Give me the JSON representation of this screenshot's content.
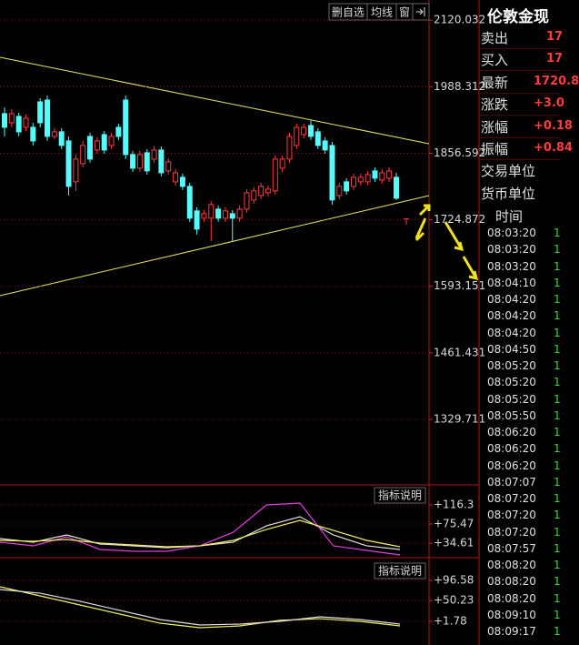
{
  "chart_data": [
    {
      "type": "candlestick",
      "ylim": [
        1200,
        2151
      ],
      "yticks": [
        2120.032,
        1988.312,
        1856.592,
        1724.872,
        1593.151,
        1461.431,
        1329.711
      ],
      "grid": true,
      "up_color": "#ff3c3c",
      "down_color": "#54fcfc",
      "open": [
        1935,
        1917,
        1929.6,
        1908,
        1908,
        1958.4,
        1962,
        1890,
        1899,
        1881,
        1800,
        1836,
        1890,
        1863,
        1893.6,
        1872,
        1908,
        1962,
        1854,
        1827,
        1857.6,
        1845,
        1863,
        1821.6,
        1800,
        1809,
        1791,
        1742.4,
        1728,
        1728,
        1746,
        1728,
        1737,
        1728,
        1746,
        1764,
        1773,
        1778.4,
        1782,
        1827,
        1845,
        1872,
        1893.6,
        1911.6,
        1899,
        1881,
        1872,
        1773,
        1800,
        1791,
        1800,
        1800,
        1821.6,
        1803.6,
        1807.2,
        1809
      ],
      "high": [
        1947.6,
        1944,
        1936.8,
        1933.2,
        1917,
        1965.6,
        1971,
        1906.2,
        1906.2,
        1890,
        1854,
        1881,
        1897.2,
        1888.2,
        1900.8,
        1897.2,
        1915.2,
        1971,
        1861.2,
        1861.2,
        1864.8,
        1870.2,
        1870.2,
        1846.8,
        1825.2,
        1816.2,
        1798.2,
        1749.6,
        1744.2,
        1762.2,
        1753.2,
        1749.6,
        1744.2,
        1753.2,
        1785.6,
        1789.2,
        1798.2,
        1792.8,
        1852.2,
        1852.2,
        1897.2,
        1915.2,
        1915.2,
        1921.4,
        1906.2,
        1888.2,
        1879.2,
        1798.2,
        1807.2,
        1816.2,
        1816.2,
        1821.6,
        1828.8,
        1825.2,
        1828.8,
        1818
      ],
      "low": [
        1890,
        1908,
        1890,
        1900.8,
        1872,
        1908,
        1881,
        1884.6,
        1864.8,
        1773,
        1782,
        1828.8,
        1837.8,
        1855.8,
        1855.8,
        1864.8,
        1882.8,
        1845,
        1819.8,
        1819.8,
        1814.4,
        1837.8,
        1810.8,
        1814.4,
        1792.8,
        1783.8,
        1720.8,
        1695.6,
        1720.8,
        1683,
        1720.8,
        1720.8,
        1683,
        1720.8,
        1738.8,
        1756.8,
        1765.8,
        1771.2,
        1774.8,
        1819.8,
        1837.8,
        1864.8,
        1886.4,
        1882.8,
        1864.8,
        1855.8,
        1755,
        1765.8,
        1774.8,
        1783.8,
        1792.8,
        1792.8,
        1800,
        1796.4,
        1800,
        1764
      ],
      "close": [
        1908,
        1935,
        1899,
        1926,
        1881,
        1917,
        1890,
        1899,
        1872,
        1791,
        1845,
        1872,
        1845,
        1881,
        1863,
        1890,
        1890,
        1854,
        1827,
        1854,
        1821.6,
        1863,
        1818,
        1839.6,
        1818,
        1791,
        1728,
        1706.4,
        1737,
        1755,
        1728,
        1742.4,
        1728,
        1746,
        1778.4,
        1782,
        1791,
        1785.6,
        1845,
        1845,
        1890,
        1908,
        1908,
        1890,
        1872,
        1863,
        1764,
        1791,
        1782,
        1809,
        1809,
        1814.4,
        1807.2,
        1818,
        1821.6,
        1767.6
      ]
    },
    {
      "type": "line",
      "ylim": [
        5.4,
        155.2
      ],
      "yticks": [
        {
          "value": 116.3,
          "label": "+116.3"
        },
        {
          "value": 75.47,
          "label": "+75.47"
        },
        {
          "value": 34.61,
          "label": "+34.61"
        }
      ],
      "series": [
        {
          "color": "#e0e0e0",
          "values": [
            44.3,
            36.6,
            52.1,
            32.7,
            28.8,
            24.9,
            28.8,
            36.6,
            71.6,
            91.0,
            52.1,
            28.8,
            21.0
          ]
        },
        {
          "color": "#e040e0",
          "values": [
            36.6,
            28.8,
            48.2,
            21.0,
            17.1,
            17.1,
            28.8,
            57.9,
            116.3,
            120.2,
            28.8,
            19.0,
            9.3
          ]
        },
        {
          "color": "#f0f060",
          "values": [
            40.4,
            38.5,
            42.4,
            34.6,
            30.7,
            26.8,
            28.8,
            40.4,
            63.8,
            83.2,
            61.9,
            40.4,
            26.8
          ]
        }
      ]
    },
    {
      "type": "line",
      "ylim": [
        -53.0,
        145.0
      ],
      "yticks": [
        {
          "value": 96.58,
          "label": "+96.58"
        },
        {
          "value": 50.23,
          "label": "+50.23"
        },
        {
          "value": 1.78,
          "label": "+1.78"
        }
      ],
      "series": [
        {
          "color": "#f0f060",
          "values": [
            81.8,
            60.7,
            39.7,
            18.6,
            -2.5,
            -13.0,
            -8.8,
            4.2,
            8.0,
            1.7,
            -8.8
          ]
        },
        {
          "color": "#e0e0e0",
          "values": [
            75.5,
            66.9,
            48.2,
            27.1,
            6.0,
            -6.6,
            -4.5,
            1.7,
            12.3,
            6.0,
            -4.5
          ]
        }
      ]
    }
  ],
  "toolbar": [
    "删自选",
    "均线",
    "窗"
  ],
  "indicator_buttons": [
    "指标说明",
    "指标说明"
  ],
  "quote": {
    "title": "伦敦金现",
    "rows": [
      {
        "label": "卖出",
        "value": "17"
      },
      {
        "label": "买入",
        "value": "17"
      },
      {
        "label": "最新",
        "value": "1720.8"
      },
      {
        "label": "涨跌",
        "value": "+3.0"
      },
      {
        "label": "涨幅",
        "value": "+0.18"
      },
      {
        "label": "振幅",
        "value": "+0.84"
      },
      {
        "label": "交易单位"
      },
      {
        "label": "货币单位"
      }
    ],
    "time_header": "时间",
    "trades": [
      {
        "time": "08:03:20",
        "vol": "1"
      },
      {
        "time": "08:03:20",
        "vol": "1"
      },
      {
        "time": "08:03:20",
        "vol": "1"
      },
      {
        "time": "08:04:10",
        "vol": "1"
      },
      {
        "time": "08:04:20",
        "vol": "1"
      },
      {
        "time": "08:04:20",
        "vol": "1"
      },
      {
        "time": "08:04:20",
        "vol": "1"
      },
      {
        "time": "08:04:50",
        "vol": "1"
      },
      {
        "time": "08:05:20",
        "vol": "1"
      },
      {
        "time": "08:05:20",
        "vol": "1"
      },
      {
        "time": "08:05:20",
        "vol": "1"
      },
      {
        "time": "08:05:50",
        "vol": "1"
      },
      {
        "time": "08:06:20",
        "vol": "1"
      },
      {
        "time": "08:06:20",
        "vol": "1"
      },
      {
        "time": "08:06:20",
        "vol": "1"
      },
      {
        "time": "08:07:07",
        "vol": "1"
      },
      {
        "time": "08:07:20",
        "vol": "1"
      },
      {
        "time": "08:07:20",
        "vol": "1"
      },
      {
        "time": "08:07:20",
        "vol": "1"
      },
      {
        "time": "08:07:57",
        "vol": "1"
      },
      {
        "time": "08:08:20",
        "vol": "1"
      },
      {
        "time": "08:08:20",
        "vol": "1"
      },
      {
        "time": "08:08:20",
        "vol": "1"
      },
      {
        "time": "08:09:10",
        "vol": "1"
      },
      {
        "time": "08:09:17",
        "vol": "1"
      }
    ]
  }
}
